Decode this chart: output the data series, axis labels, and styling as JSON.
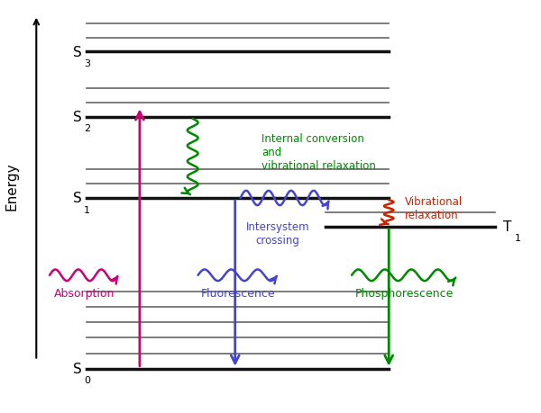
{
  "figsize": [
    6.0,
    4.6
  ],
  "dpi": 100,
  "bg_color": "#ffffff",
  "energy_label": "Energy",
  "colors": {
    "absorption": "#cc0077",
    "fluorescence": "#4444cc",
    "phosphorescence": "#008800",
    "internal_conversion": "#008800",
    "intersystem_crossing": "#4444cc",
    "vibrational_red": "#cc2200",
    "level_main": "#111111",
    "level_vib": "#666666"
  },
  "xlim": [
    0.0,
    10.0
  ],
  "ylim": [
    0.0,
    10.0
  ],
  "levels": {
    "S0": 1.0,
    "S1": 5.2,
    "S2": 7.2,
    "S3": 8.8,
    "T1": 4.5
  },
  "main_x0": 1.5,
  "main_x1": 7.2,
  "T1_x0": 6.0,
  "T1_x1": 9.2,
  "abs_x": 2.5,
  "fl_x": 4.3,
  "ph_x": 7.2,
  "ic_x": 3.5,
  "vib_s0": [
    1.0,
    1.38,
    1.76,
    2.14,
    2.52,
    2.9
  ],
  "vib_s1": [
    5.2,
    5.55,
    5.9
  ],
  "vib_s2": [
    7.2,
    7.55,
    7.9
  ],
  "vib_s3": [
    8.8,
    9.15,
    9.5
  ],
  "vib_t1": [
    4.5,
    4.85
  ]
}
